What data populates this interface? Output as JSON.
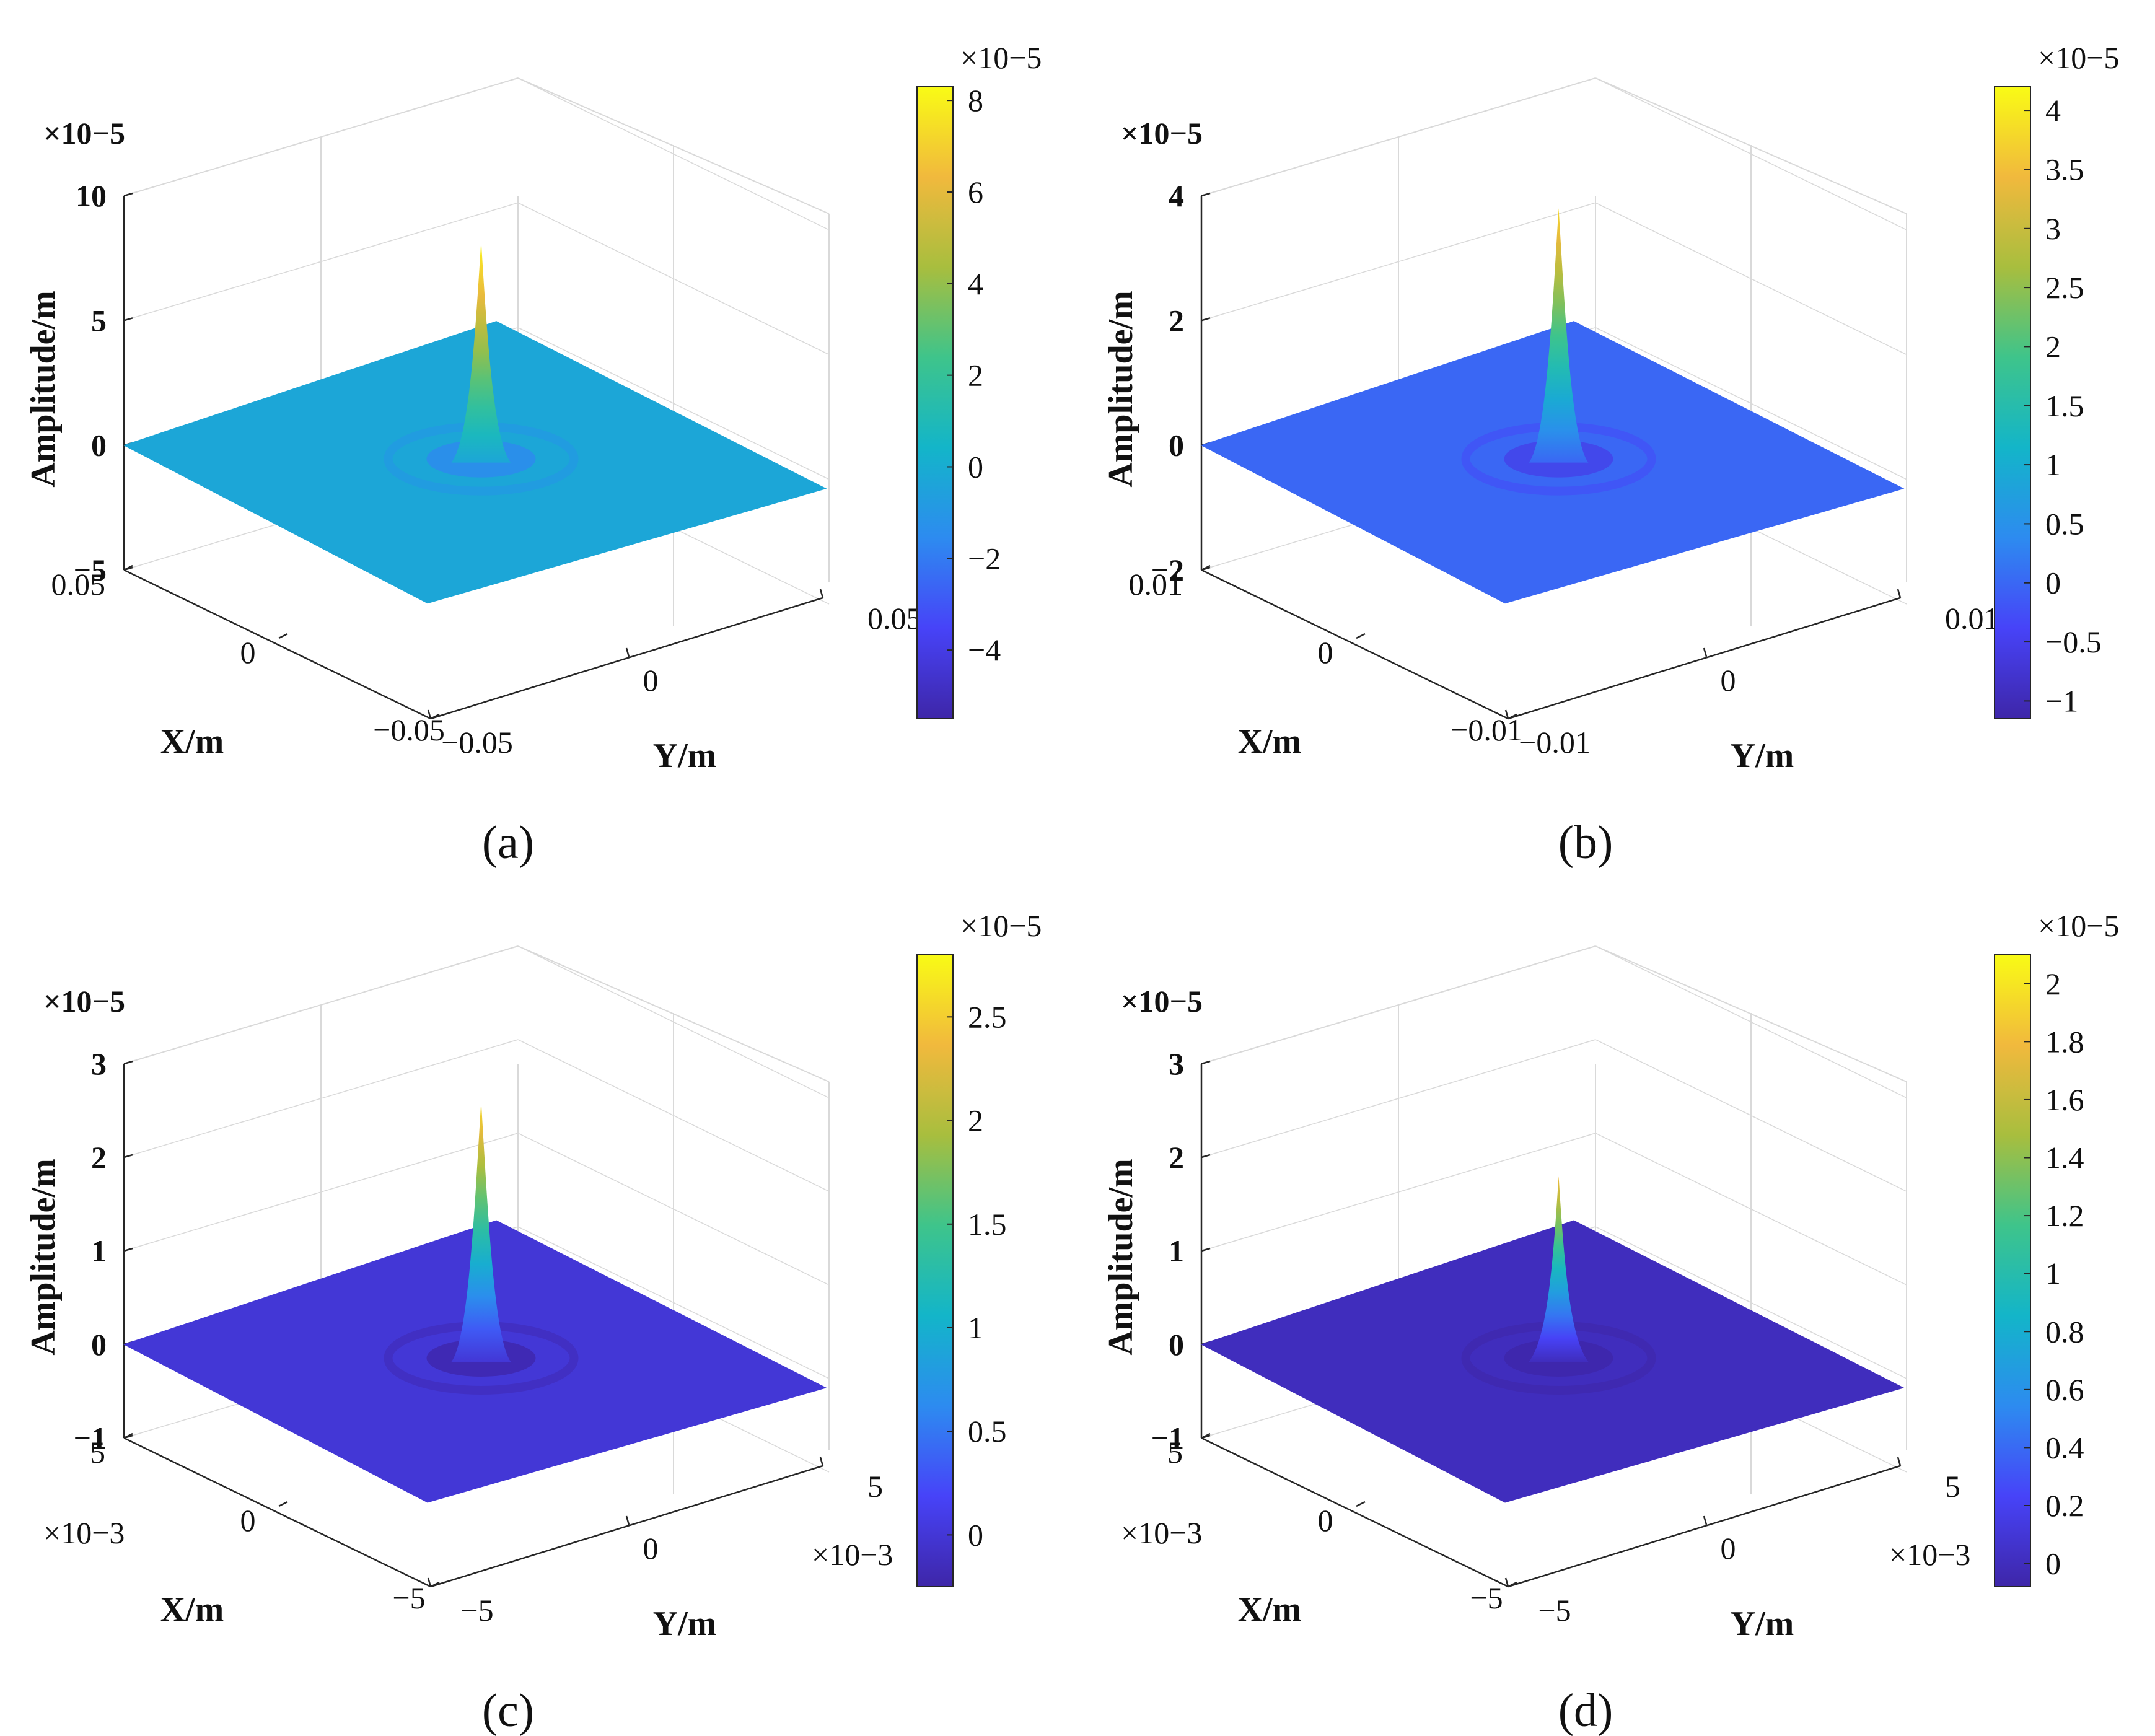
{
  "chart_data": [
    {
      "type": "surface",
      "panel": "a",
      "caption": "(a)",
      "title": "",
      "xlabel": "X/m",
      "ylabel": "Y/m",
      "zlabel": "Amplitude/m",
      "z_exponent": "×10−5",
      "x_ticks": [
        "0.05",
        "0",
        "−0.05"
      ],
      "y_ticks": [
        "−0.05",
        "0",
        "0.05"
      ],
      "z_ticks": [
        "10",
        "5",
        "0",
        "−5"
      ],
      "z_tick_values": [
        10,
        5,
        0,
        -5
      ],
      "zlim": [
        -5,
        10
      ],
      "peak": 8.2,
      "colorbar": {
        "exponent": "×10−5",
        "range": [
          -5.5,
          8.3
        ],
        "ticks": [
          "8",
          "6",
          "4",
          "2",
          "0",
          "−2",
          "−4"
        ],
        "tick_values": [
          8,
          6,
          4,
          2,
          0,
          -2,
          -4
        ],
        "plane_value": -0.3
      }
    },
    {
      "type": "surface",
      "panel": "b",
      "caption": "(b)",
      "title": "",
      "xlabel": "X/m",
      "ylabel": "Y/m",
      "zlabel": "Amplitude/m",
      "z_exponent": "×10−5",
      "x_ticks": [
        "0.01",
        "0",
        "−0.01"
      ],
      "y_ticks": [
        "−0.01",
        "0",
        "0.01"
      ],
      "z_ticks": [
        "4",
        "2",
        "0",
        "−2"
      ],
      "z_tick_values": [
        4,
        2,
        0,
        -2
      ],
      "zlim": [
        -2,
        4
      ],
      "peak": 3.8,
      "colorbar": {
        "exponent": "×10−5",
        "range": [
          -1.15,
          4.2
        ],
        "ticks": [
          "4",
          "3.5",
          "3",
          "2.5",
          "2",
          "1.5",
          "1",
          "0.5",
          "0",
          "−0.5",
          "−1"
        ],
        "tick_values": [
          4,
          3.5,
          3,
          2.5,
          2,
          1.5,
          1,
          0.5,
          0,
          -0.5,
          -1
        ],
        "plane_value": 0.0
      }
    },
    {
      "type": "surface",
      "panel": "c",
      "caption": "(c)",
      "title": "",
      "xlabel": "X/m",
      "ylabel": "Y/m",
      "zlabel": "Amplitude/m",
      "z_exponent": "×10−5",
      "x_exponent": "×10−3",
      "y_exponent": "×10−3",
      "x_ticks": [
        "5",
        "0",
        "−5"
      ],
      "y_ticks": [
        "−5",
        "0",
        "5"
      ],
      "z_ticks": [
        "3",
        "2",
        "1",
        "0",
        "−1"
      ],
      "z_tick_values": [
        3,
        2,
        1,
        0,
        -1
      ],
      "zlim": [
        -1,
        3
      ],
      "peak": 2.6,
      "colorbar": {
        "exponent": "×10−5",
        "range": [
          -0.25,
          2.8
        ],
        "ticks": [
          "2.5",
          "2",
          "1.5",
          "1",
          "0.5",
          "0"
        ],
        "tick_values": [
          2.5,
          2,
          1.5,
          1,
          0.5,
          0
        ],
        "plane_value": 0.0
      }
    },
    {
      "type": "surface",
      "panel": "d",
      "caption": "(d)",
      "title": "",
      "xlabel": "X/m",
      "ylabel": "Y/m",
      "zlabel": "Amplitude/m",
      "z_exponent": "×10−5",
      "x_exponent": "×10−3",
      "y_exponent": "×10−3",
      "x_ticks": [
        "5",
        "0",
        "−5"
      ],
      "y_ticks": [
        "−5",
        "0",
        "5"
      ],
      "z_ticks": [
        "3",
        "2",
        "1",
        "0",
        "−1"
      ],
      "z_tick_values": [
        3,
        2,
        1,
        0,
        -1
      ],
      "zlim": [
        -1,
        3
      ],
      "peak": 1.8,
      "colorbar": {
        "exponent": "×10−5",
        "range": [
          -0.08,
          2.1
        ],
        "ticks": [
          "2",
          "1.8",
          "1.6",
          "1.4",
          "1.2",
          "1",
          "0.8",
          "0.6",
          "0.4",
          "0.2",
          "0"
        ],
        "tick_values": [
          2,
          1.8,
          1.6,
          1.4,
          1.2,
          1,
          0.8,
          0.6,
          0.4,
          0.2,
          0
        ],
        "plane_value": 0.0
      }
    }
  ],
  "colormap": [
    "#3e26a8",
    "#4743f8",
    "#2d8bf0",
    "#13b5c9",
    "#3ec48b",
    "#a8be3e",
    "#f1b93d",
    "#f9fb15"
  ]
}
